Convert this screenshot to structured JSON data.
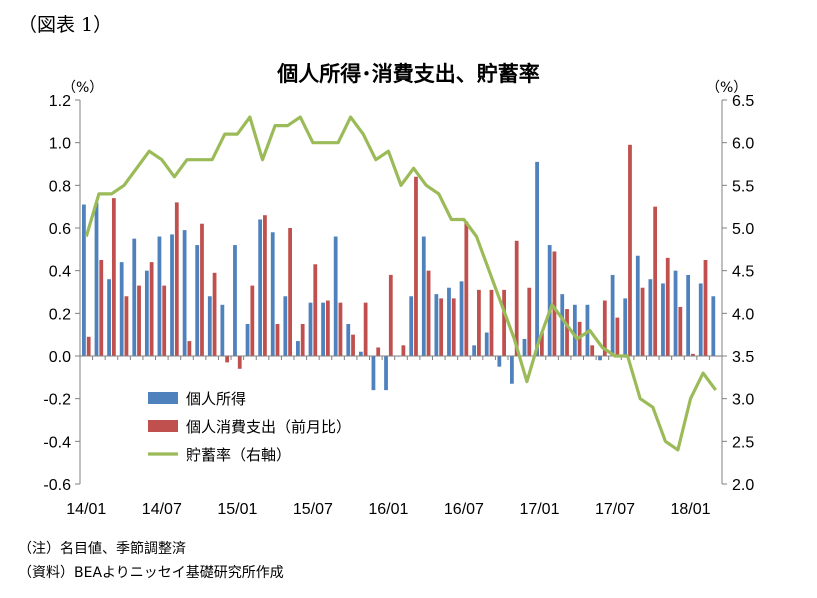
{
  "figure_label": "（図表 1）",
  "notes": [
    "（注）名目値、季節調整済",
    "（資料）BEAよりニッセイ基礎研究所作成"
  ],
  "colors": {
    "income": "#4F81BD",
    "consumption": "#C0504D",
    "saving_rate": "#9BBB59",
    "axis": "#808080"
  },
  "chart_data": {
    "type": "bar+line",
    "title": "個人所得･消費支出、貯蓄率",
    "left_unit": "（%）",
    "right_unit": "（%）",
    "ylim_left": [
      -0.6,
      1.2
    ],
    "yticks_left": [
      "1.2",
      "1.0",
      "0.8",
      "0.6",
      "0.4",
      "0.2",
      "0.0",
      "-0.2",
      "-0.4",
      "-0.6"
    ],
    "ylim_right": [
      2.0,
      6.5
    ],
    "yticks_right": [
      "6.5",
      "6.0",
      "5.5",
      "5.0",
      "4.5",
      "4.0",
      "3.5",
      "3.0",
      "2.5",
      "2.0"
    ],
    "x_tick_labels": [
      "14/01",
      "14/07",
      "15/01",
      "15/07",
      "16/01",
      "16/07",
      "17/01",
      "17/07",
      "18/01"
    ],
    "x_tick_every": 6,
    "categories": [
      "14/01",
      "14/02",
      "14/03",
      "14/04",
      "14/05",
      "14/06",
      "14/07",
      "14/08",
      "14/09",
      "14/10",
      "14/11",
      "14/12",
      "15/01",
      "15/02",
      "15/03",
      "15/04",
      "15/05",
      "15/06",
      "15/07",
      "15/08",
      "15/09",
      "15/10",
      "15/11",
      "15/12",
      "16/01",
      "16/02",
      "16/03",
      "16/04",
      "16/05",
      "16/06",
      "16/07",
      "16/08",
      "16/09",
      "16/10",
      "16/11",
      "16/12",
      "17/01",
      "17/02",
      "17/03",
      "17/04",
      "17/05",
      "17/06",
      "17/07",
      "17/08",
      "17/09",
      "17/10",
      "17/11",
      "17/12",
      "18/01",
      "18/02",
      "18/03"
    ],
    "legend_position": "bottom-left",
    "grid": false,
    "series": [
      {
        "name": "個人所得",
        "axis": "left",
        "kind": "bar",
        "values": [
          0.71,
          0.72,
          0.36,
          0.44,
          0.55,
          0.4,
          0.56,
          0.57,
          0.59,
          0.52,
          0.28,
          0.24,
          0.52,
          0.15,
          0.64,
          0.58,
          0.28,
          0.07,
          0.25,
          0.25,
          0.56,
          0.15,
          0.02,
          -0.16,
          -0.16,
          0.0,
          0.28,
          0.56,
          0.29,
          0.32,
          0.35,
          0.05,
          0.11,
          -0.05,
          -0.13,
          0.08,
          0.91,
          0.52,
          0.29,
          0.24,
          0.24,
          -0.02,
          0.38,
          0.27,
          0.47,
          0.36,
          0.34,
          0.4,
          0.38,
          0.34,
          0.28
        ]
      },
      {
        "name": "個人消費支出（前月比）",
        "axis": "left",
        "kind": "bar",
        "values": [
          0.09,
          0.45,
          0.74,
          0.28,
          0.33,
          0.44,
          0.33,
          0.72,
          0.07,
          0.62,
          0.39,
          -0.03,
          -0.06,
          0.33,
          0.66,
          0.15,
          0.6,
          0.15,
          0.43,
          0.26,
          0.25,
          0.1,
          0.25,
          0.04,
          0.38,
          0.05,
          0.84,
          0.4,
          0.27,
          0.27,
          0.63,
          0.31,
          0.31,
          0.31,
          0.54,
          0.32,
          0.11,
          0.49,
          0.22,
          0.16,
          0.05,
          0.26,
          0.18,
          0.99,
          0.32,
          0.7,
          0.46,
          0.23,
          0.01,
          0.45,
          0.0
        ]
      },
      {
        "name": "貯蓄率（右軸）",
        "axis": "right",
        "kind": "line",
        "values": [
          4.9,
          5.4,
          5.4,
          5.5,
          5.7,
          5.9,
          5.8,
          5.6,
          5.8,
          5.8,
          5.8,
          6.1,
          6.1,
          6.3,
          5.8,
          6.2,
          6.2,
          6.3,
          6.0,
          6.0,
          6.0,
          6.3,
          6.1,
          5.8,
          5.9,
          5.5,
          5.7,
          5.5,
          5.4,
          5.1,
          5.1,
          4.9,
          4.5,
          4.1,
          3.7,
          3.2,
          3.7,
          4.1,
          3.9,
          3.7,
          3.8,
          3.6,
          3.5,
          3.5,
          3.0,
          2.9,
          2.5,
          2.4,
          3.0,
          3.3,
          3.1
        ]
      }
    ]
  }
}
